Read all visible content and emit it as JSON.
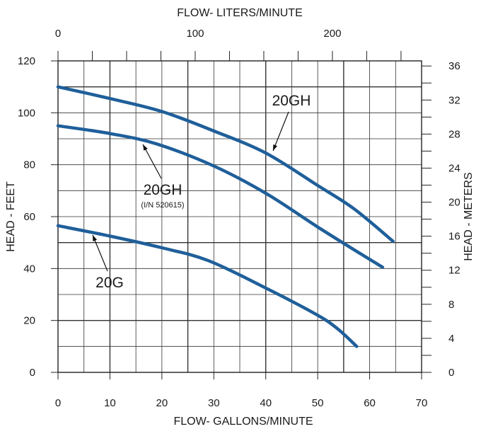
{
  "chart_data": {
    "type": "line",
    "title": "",
    "xlabel": "FLOW- GALLONS/MINUTE",
    "ylabel": "HEAD - FEET",
    "x2label": "FLOW- LITERS/MINUTE",
    "y2label": "HEAD - METERS",
    "xlim": [
      0,
      70
    ],
    "ylim": [
      0,
      120
    ],
    "x2lim": [
      0,
      265
    ],
    "y2lim": [
      0,
      36.6
    ],
    "grid": true,
    "legend": "none",
    "x_ticks": [
      0,
      10,
      20,
      30,
      40,
      50,
      60,
      70
    ],
    "x_tick_labels": [
      "0",
      "10",
      "20",
      "30",
      "40",
      "50",
      "60",
      "70"
    ],
    "y_ticks": [
      0,
      20,
      40,
      60,
      80,
      100,
      120
    ],
    "y_tick_labels": [
      "0",
      "20",
      "40",
      "60",
      "80",
      "100",
      "120"
    ],
    "x2_ticks": [
      0,
      100,
      200
    ],
    "x2_tick_labels": [
      "0",
      "100",
      "200"
    ],
    "y2_ticks": [
      0,
      4,
      8,
      12,
      16,
      20,
      24,
      28,
      32,
      36
    ],
    "y2_tick_labels": [
      "0",
      "4",
      "8",
      "12",
      "16",
      "20",
      "24",
      "28",
      "32",
      "36"
    ],
    "series": [
      {
        "name": "20GH",
        "color": "#1f5f9a",
        "x": [
          0,
          10,
          20,
          30,
          40,
          50,
          57,
          64.5
        ],
        "y": [
          110,
          105.5,
          100.5,
          93,
          84.5,
          72,
          63,
          50.5
        ]
      },
      {
        "name": "20GH",
        "sublabel": "(I/N 520615)",
        "color": "#1f5f9a",
        "x": [
          0,
          10,
          19,
          30,
          40,
          50,
          58,
          62.5
        ],
        "y": [
          95,
          92,
          88,
          79.5,
          69,
          56,
          46,
          40.5
        ]
      },
      {
        "name": "20G",
        "color": "#1f5f9a",
        "x": [
          0,
          10,
          20,
          29,
          40,
          50,
          54,
          57.5
        ],
        "y": [
          56.5,
          52.5,
          48,
          43,
          32.5,
          22,
          16.5,
          10
        ]
      }
    ]
  }
}
